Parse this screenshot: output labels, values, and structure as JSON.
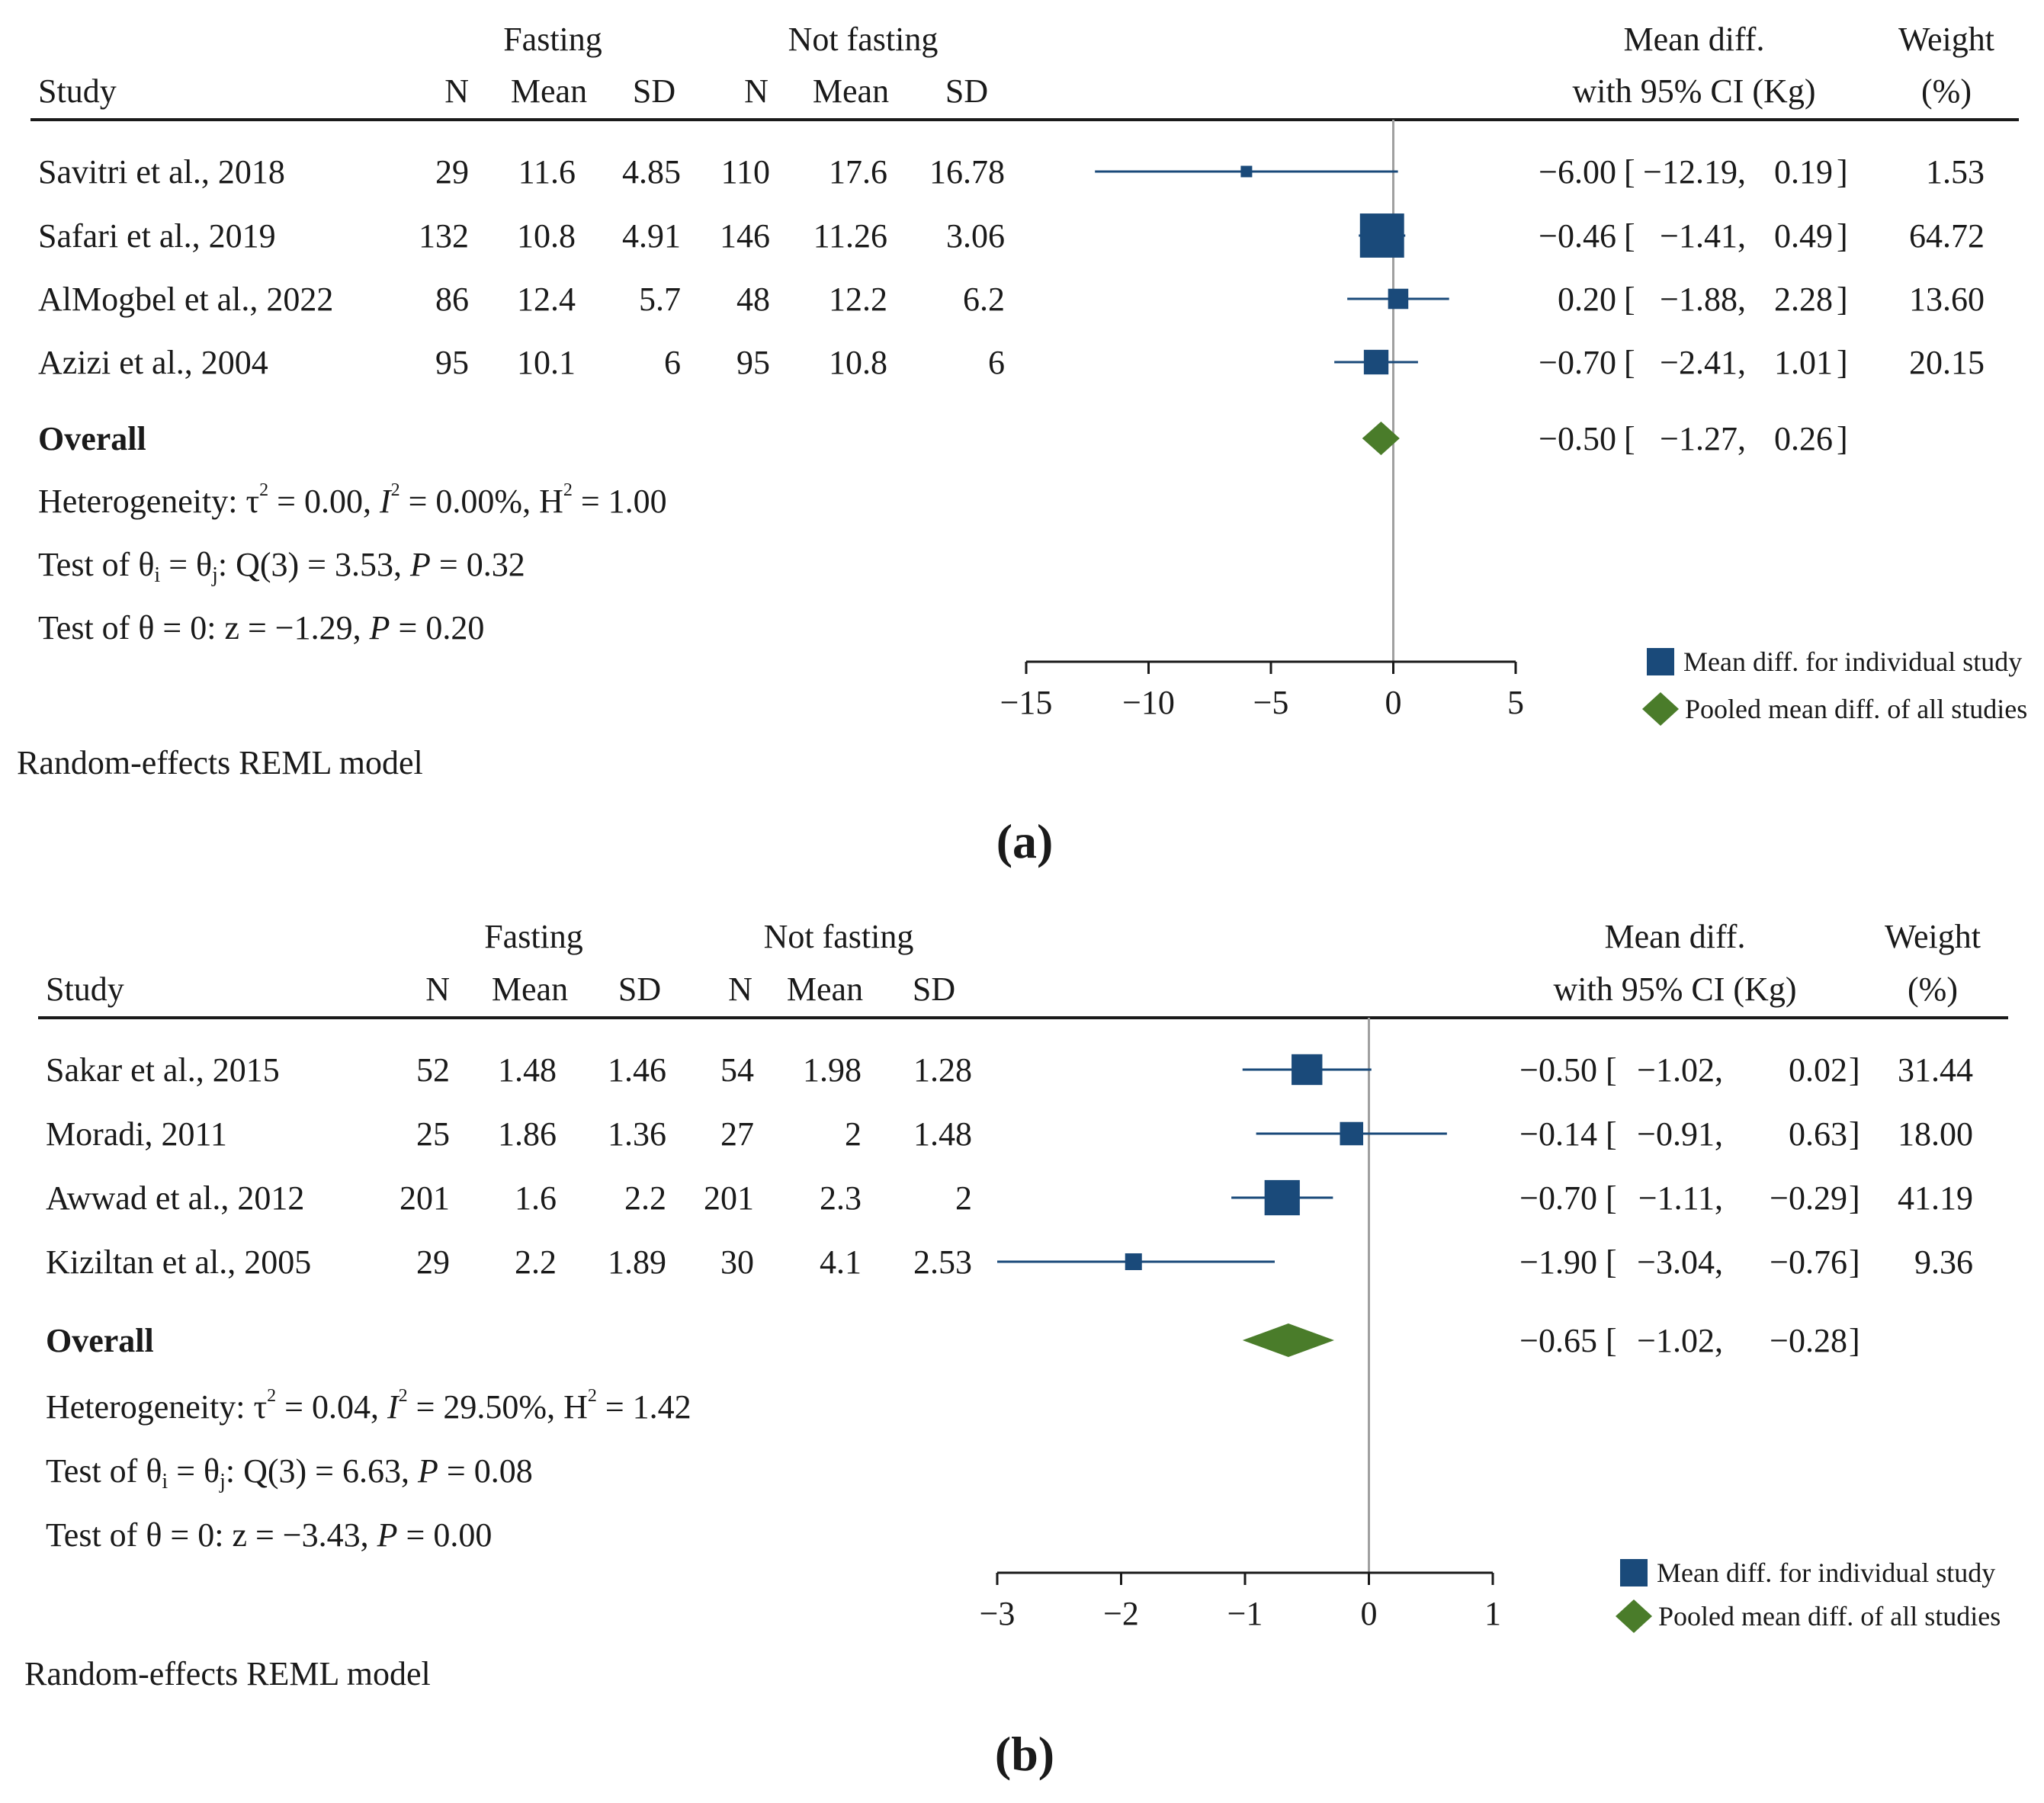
{
  "colors": {
    "study_marker": "#1a4a7a",
    "pooled_marker": "#4a7c2a",
    "ci_line": "#1a4a7a",
    "null_line": "#a0a0a0",
    "text": "#1a1a1a"
  },
  "chart_data": [
    {
      "panel_label": "(a)",
      "type": "forest",
      "header": {
        "group1": "Fasting",
        "group2": "Not fasting",
        "study": "Study",
        "n": "N",
        "mean": "Mean",
        "sd": "SD",
        "effect_line1": "Mean diff.",
        "effect_line2": "with 95% CI (Kg)",
        "weight_line1": "Weight",
        "weight_line2": "(%)"
      },
      "studies": [
        {
          "study": "Savitri et al., 2018",
          "n1": "29",
          "mean1": "11.6",
          "sd1": "4.85",
          "n2": "110",
          "mean2": "17.6",
          "sd2": "16.78",
          "md": -6.0,
          "lo": -12.19,
          "hi": 0.19,
          "weight": 1.53,
          "md_text": "−6.00",
          "lo_text": "−12.19",
          "hi_text": "0.19",
          "weight_text": "1.53"
        },
        {
          "study": "Safari et al., 2019",
          "n1": "132",
          "mean1": "10.8",
          "sd1": "4.91",
          "n2": "146",
          "mean2": "11.26",
          "sd2": "3.06",
          "md": -0.46,
          "lo": -1.41,
          "hi": 0.49,
          "weight": 64.72,
          "md_text": "−0.46",
          "lo_text": "−1.41",
          "hi_text": "0.49",
          "weight_text": "64.72"
        },
        {
          "study": "AlMogbel et al., 2022",
          "n1": "86",
          "mean1": "12.4",
          "sd1": "5.7",
          "n2": "48",
          "mean2": "12.2",
          "sd2": "6.2",
          "md": 0.2,
          "lo": -1.88,
          "hi": 2.28,
          "weight": 13.6,
          "md_text": "0.20",
          "lo_text": "−1.88",
          "hi_text": "2.28",
          "weight_text": "13.60"
        },
        {
          "study": "Azizi et al., 2004",
          "n1": "95",
          "mean1": "10.1",
          "sd1": "6",
          "n2": "95",
          "mean2": "10.8",
          "sd2": "6",
          "md": -0.7,
          "lo": -2.41,
          "hi": 1.01,
          "weight": 20.15,
          "md_text": "−0.70",
          "lo_text": "−2.41",
          "hi_text": "1.01",
          "weight_text": "20.15"
        }
      ],
      "overall": {
        "label": "Overall",
        "md": -0.5,
        "lo": -1.27,
        "hi": 0.26,
        "md_text": "−0.50",
        "lo_text": "−1.27",
        "hi_text": "0.26"
      },
      "stats": {
        "tau2": "0.00",
        "i2": "0.00%",
        "h2": "1.00",
        "q": "Q(3) = 3.53",
        "p_q": "0.32",
        "z": "z = −1.29",
        "p_z": "0.20"
      },
      "x_axis": {
        "ticks": [
          -15,
          -10,
          -5,
          0,
          5
        ],
        "tick_labels": [
          "−15",
          "−10",
          "−5",
          "0",
          "5"
        ],
        "range": [
          -15,
          5
        ]
      },
      "legend": {
        "study_label": "Mean diff. for individual study",
        "pooled_label": "Pooled mean diff. of all studies",
        "placement": "bottom-right"
      },
      "model_note": "Random-effects REML model"
    },
    {
      "panel_label": "(b)",
      "type": "forest",
      "header": {
        "group1": "Fasting",
        "group2": "Not fasting",
        "study": "Study",
        "n": "N",
        "mean": "Mean",
        "sd": "SD",
        "effect_line1": "Mean diff.",
        "effect_line2": "with 95% CI (Kg)",
        "weight_line1": "Weight",
        "weight_line2": "(%)"
      },
      "studies": [
        {
          "study": "Sakar et al., 2015",
          "n1": "52",
          "mean1": "1.48",
          "sd1": "1.46",
          "n2": "54",
          "mean2": "1.98",
          "sd2": "1.28",
          "md": -0.5,
          "lo": -1.02,
          "hi": 0.02,
          "weight": 31.44,
          "md_text": "−0.50",
          "lo_text": "−1.02",
          "hi_text": "0.02",
          "weight_text": "31.44"
        },
        {
          "study": "Moradi, 2011",
          "n1": "25",
          "mean1": "1.86",
          "sd1": "1.36",
          "n2": "27",
          "mean2": "2",
          "sd2": "1.48",
          "md": -0.14,
          "lo": -0.91,
          "hi": 0.63,
          "weight": 18.0,
          "md_text": "−0.14",
          "lo_text": "−0.91",
          "hi_text": "0.63",
          "weight_text": "18.00"
        },
        {
          "study": "Awwad et al., 2012",
          "n1": "201",
          "mean1": "1.6",
          "sd1": "2.2",
          "n2": "201",
          "mean2": "2.3",
          "sd2": "2",
          "md": -0.7,
          "lo": -1.11,
          "hi": -0.29,
          "weight": 41.19,
          "md_text": "−0.70",
          "lo_text": "−1.11",
          "hi_text": "−0.29",
          "weight_text": "41.19"
        },
        {
          "study": "Kiziltan et al., 2005",
          "n1": "29",
          "mean1": "2.2",
          "sd1": "1.89",
          "n2": "30",
          "mean2": "4.1",
          "sd2": "2.53",
          "md": -1.9,
          "lo": -3.04,
          "hi": -0.76,
          "weight": 9.36,
          "md_text": "−1.90",
          "lo_text": "−3.04",
          "hi_text": "−0.76",
          "weight_text": "9.36"
        }
      ],
      "overall": {
        "label": "Overall",
        "md": -0.65,
        "lo": -1.02,
        "hi": -0.28,
        "md_text": "−0.65",
        "lo_text": "−1.02",
        "hi_text": "−0.28"
      },
      "stats": {
        "tau2": "0.04",
        "i2": "29.50%",
        "h2": "1.42",
        "q": "Q(3) = 6.63",
        "p_q": "0.08",
        "z": "z = −3.43",
        "p_z": "0.00"
      },
      "x_axis": {
        "ticks": [
          -3,
          -2,
          -1,
          0,
          1
        ],
        "tick_labels": [
          "−3",
          "−2",
          "−1",
          "0",
          "1"
        ],
        "range": [
          -3,
          1
        ]
      },
      "legend": {
        "study_label": "Mean diff. for individual study",
        "pooled_label": "Pooled mean diff. of all studies",
        "placement": "bottom-right"
      },
      "model_note": "Random-effects REML model"
    }
  ]
}
